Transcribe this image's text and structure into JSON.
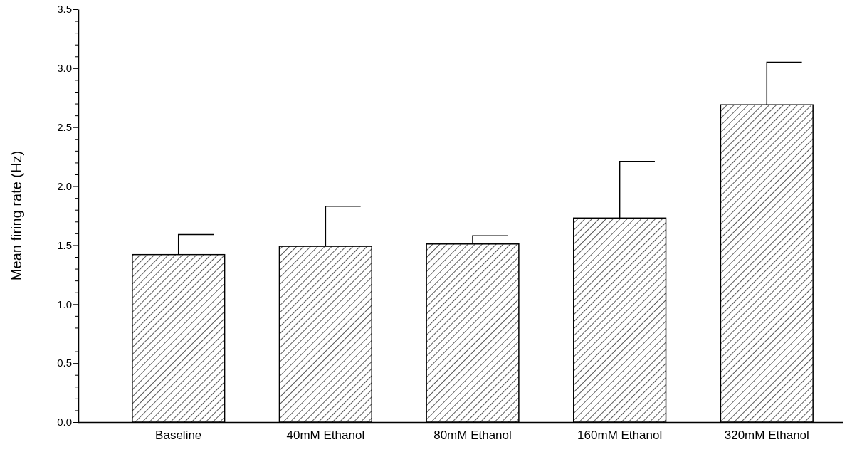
{
  "chart_data": {
    "type": "bar",
    "ylabel": "Mean firing rate (Hz)",
    "categories": [
      "Baseline",
      "40mM Ethanol",
      "80mM Ethanol",
      "160mM Ethanol",
      "320mM Ethanol"
    ],
    "values": [
      1.42,
      1.49,
      1.51,
      1.73,
      2.69
    ],
    "errors": [
      [
        1.42,
        1.59
      ],
      [
        1.49,
        1.83
      ],
      [
        1.51,
        1.58
      ],
      [
        1.73,
        2.21
      ],
      [
        2.69,
        3.05
      ]
    ],
    "color": "#000000",
    "ylim": [
      0,
      3.5
    ],
    "yticks": [
      {
        "value": 0,
        "label": "0.0"
      },
      {
        "value": 0.1,
        "label": null
      },
      {
        "value": 0.2,
        "label": null
      },
      {
        "value": 0.3,
        "label": null
      },
      {
        "value": 0.4,
        "label": null
      },
      {
        "value": 0.5,
        "label": "0.5"
      },
      {
        "value": 0.6,
        "label": null
      },
      {
        "value": 0.7,
        "label": null
      },
      {
        "value": 0.8,
        "label": null
      },
      {
        "value": 0.9,
        "label": null
      },
      {
        "value": 1,
        "label": "1.0"
      },
      {
        "value": 1.1,
        "label": null
      },
      {
        "value": 1.2,
        "label": null
      },
      {
        "value": 1.3,
        "label": null
      },
      {
        "value": 1.4,
        "label": null
      },
      {
        "value": 1.5,
        "label": "1.5"
      },
      {
        "value": 1.6,
        "label": null
      },
      {
        "value": 1.7,
        "label": null
      },
      {
        "value": 1.8,
        "label": null
      },
      {
        "value": 1.9,
        "label": null
      },
      {
        "value": 2,
        "label": "2.0"
      },
      {
        "value": 2.1,
        "label": null
      },
      {
        "value": 2.2,
        "label": null
      },
      {
        "value": 2.3,
        "label": null
      },
      {
        "value": 2.4,
        "label": null
      },
      {
        "value": 2.5,
        "label": "2.5"
      },
      {
        "value": 2.6,
        "label": null
      },
      {
        "value": 2.7,
        "label": null
      },
      {
        "value": 2.8,
        "label": null
      },
      {
        "value": 2.9,
        "label": null
      },
      {
        "value": 3,
        "label": "3.0"
      },
      {
        "value": 3.1,
        "label": null
      },
      {
        "value": 3.2,
        "label": null
      },
      {
        "value": 3.3,
        "label": null
      },
      {
        "value": 3.4,
        "label": null
      },
      {
        "value": 3.5,
        "label": "3.5"
      }
    ],
    "grid": false
  }
}
